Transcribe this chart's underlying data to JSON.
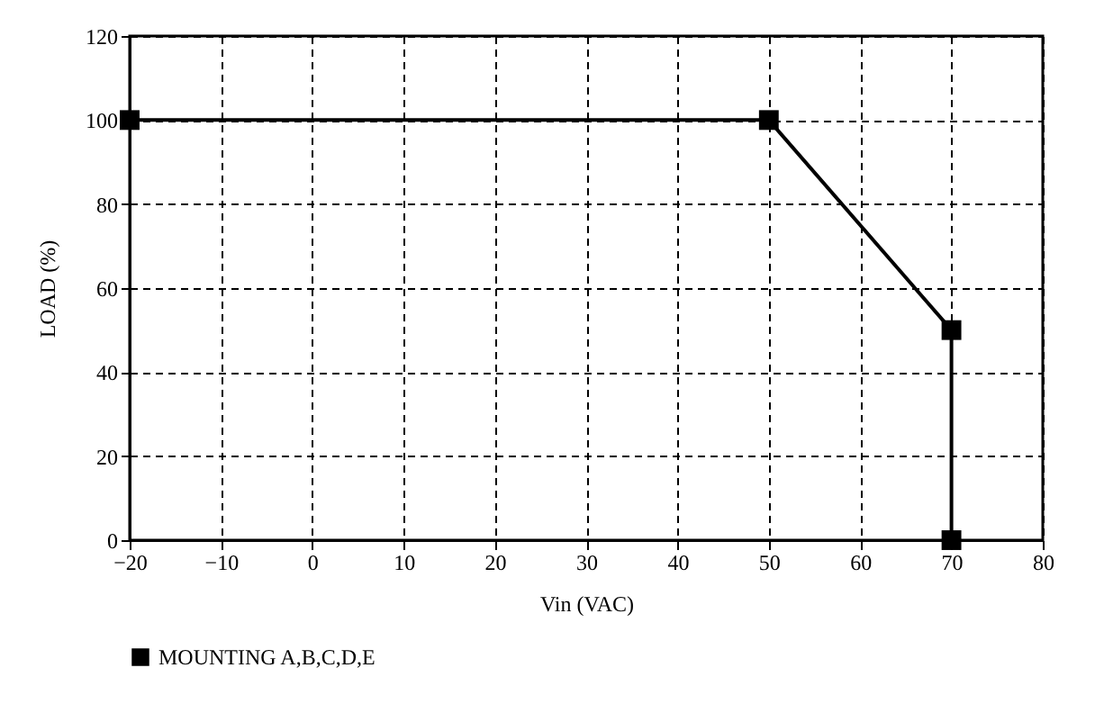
{
  "chart_data": {
    "type": "line",
    "xlabel": "Vin (VAC)",
    "ylabel": "LOAD (%)",
    "x": [
      -20,
      50,
      70,
      70
    ],
    "series": [
      {
        "name": "MOUNTING A,B,C,D,E",
        "color": "#000000",
        "values": [
          100,
          100,
          50,
          0
        ]
      }
    ],
    "xlim": [
      -20,
      80
    ],
    "xticks": [
      -20,
      -10,
      0,
      10,
      20,
      30,
      40,
      50,
      60,
      70,
      80
    ],
    "ylim": [
      0,
      120
    ],
    "yticks": [
      0,
      20,
      40,
      60,
      80,
      100,
      120
    ],
    "grid": true,
    "legend": "bottom",
    "marker": "square",
    "line_style": "solid"
  }
}
